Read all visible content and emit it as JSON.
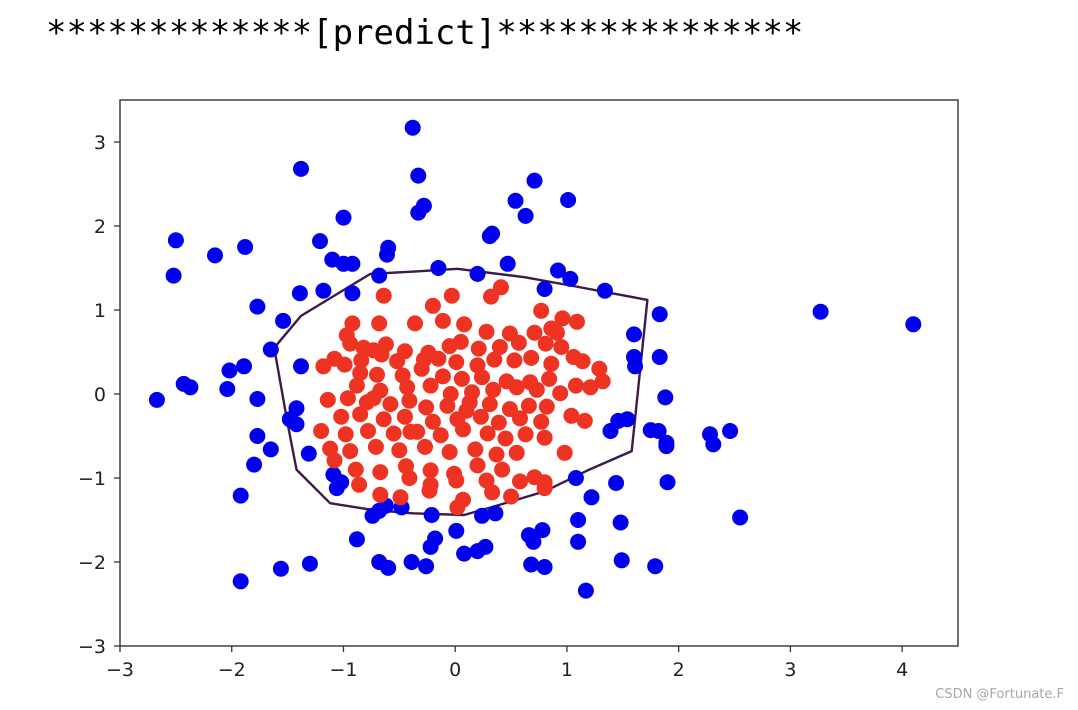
{
  "header": {
    "text": "*************[predict]***************"
  },
  "watermark": "CSDN @Fortunate.F",
  "chart_data": {
    "type": "scatter",
    "title": "",
    "xlabel": "",
    "ylabel": "",
    "xlim": [
      -3,
      4.5
    ],
    "ylim": [
      -3,
      3.5
    ],
    "xticks": [
      -3,
      -2,
      -1,
      0,
      1,
      2,
      3,
      4
    ],
    "xtick_labels": [
      "−3",
      "−2",
      "−1",
      "0",
      "1",
      "2",
      "3",
      "4"
    ],
    "yticks": [
      -3,
      -2,
      -1,
      0,
      1,
      2,
      3
    ],
    "ytick_labels": [
      "−3",
      "−2",
      "−1",
      "0",
      "1",
      "2",
      "3"
    ],
    "grid": false,
    "legend": "none",
    "colors": {
      "class_0": "#0000ee",
      "class_1": "#ee3322",
      "boundary": "#3d1a4a",
      "axes": "#333333"
    },
    "series": [
      {
        "color": "#0000ee",
        "points": [
          [
            -0.38,
            3.17
          ],
          [
            -1.38,
            2.68
          ],
          [
            -0.33,
            2.6
          ],
          [
            0.71,
            2.54
          ],
          [
            1.01,
            2.31
          ],
          [
            0.54,
            2.3
          ],
          [
            0.63,
            2.12
          ],
          [
            -0.28,
            2.24
          ],
          [
            -0.33,
            2.16
          ],
          [
            -1.0,
            2.1
          ],
          [
            0.33,
            1.91
          ],
          [
            0.31,
            1.88
          ],
          [
            -2.5,
            1.83
          ],
          [
            -1.21,
            1.82
          ],
          [
            -1.88,
            1.75
          ],
          [
            -0.6,
            1.74
          ],
          [
            -0.61,
            1.66
          ],
          [
            -2.15,
            1.65
          ],
          [
            -1.1,
            1.6
          ],
          [
            -1.0,
            1.55
          ],
          [
            -0.92,
            1.55
          ],
          [
            0.47,
            1.55
          ],
          [
            0.92,
            1.47
          ],
          [
            -0.15,
            1.5
          ],
          [
            -2.52,
            1.41
          ],
          [
            -0.68,
            1.41
          ],
          [
            1.03,
            1.37
          ],
          [
            0.2,
            1.43
          ],
          [
            0.8,
            1.25
          ],
          [
            1.34,
            1.23
          ],
          [
            -1.18,
            1.23
          ],
          [
            -1.39,
            1.2
          ],
          [
            -0.92,
            1.2
          ],
          [
            -1.77,
            1.04
          ],
          [
            1.83,
            0.95
          ],
          [
            -1.54,
            0.87
          ],
          [
            1.6,
            0.71
          ],
          [
            -1.65,
            0.53
          ],
          [
            1.6,
            0.44
          ],
          [
            1.83,
            0.44
          ],
          [
            1.61,
            0.33
          ],
          [
            -1.38,
            0.33
          ],
          [
            -2.02,
            0.28
          ],
          [
            -1.89,
            0.33
          ],
          [
            -2.43,
            0.12
          ],
          [
            -2.37,
            0.08
          ],
          [
            -2.04,
            0.06
          ],
          [
            -2.67,
            -0.07
          ],
          [
            -1.77,
            -0.06
          ],
          [
            1.88,
            -0.04
          ],
          [
            -1.42,
            -0.17
          ],
          [
            -1.48,
            -0.3
          ],
          [
            1.54,
            -0.3
          ],
          [
            1.46,
            -0.32
          ],
          [
            -1.42,
            -0.36
          ],
          [
            1.39,
            -0.44
          ],
          [
            1.75,
            -0.43
          ],
          [
            1.82,
            -0.44
          ],
          [
            -1.77,
            -0.5
          ],
          [
            1.89,
            -0.58
          ],
          [
            1.89,
            -0.62
          ],
          [
            2.28,
            -0.48
          ],
          [
            2.31,
            -0.6
          ],
          [
            2.46,
            -0.44
          ],
          [
            -1.65,
            -0.66
          ],
          [
            -1.31,
            -0.71
          ],
          [
            -1.8,
            -0.84
          ],
          [
            -1.09,
            -0.96
          ],
          [
            -1.02,
            -1.05
          ],
          [
            1.08,
            -1.0
          ],
          [
            1.9,
            -1.05
          ],
          [
            -1.06,
            -1.12
          ],
          [
            -1.92,
            -1.21
          ],
          [
            1.44,
            -1.06
          ],
          [
            1.22,
            -1.23
          ],
          [
            -0.62,
            -1.33
          ],
          [
            -0.68,
            -1.39
          ],
          [
            -0.74,
            -1.45
          ],
          [
            -0.48,
            -1.35
          ],
          [
            -0.21,
            -1.44
          ],
          [
            0.24,
            -1.45
          ],
          [
            0.36,
            -1.42
          ],
          [
            1.1,
            -1.5
          ],
          [
            1.48,
            -1.53
          ],
          [
            2.55,
            -1.47
          ],
          [
            0.01,
            -1.63
          ],
          [
            0.66,
            -1.68
          ],
          [
            0.78,
            -1.62
          ],
          [
            -0.88,
            -1.73
          ],
          [
            -0.22,
            -1.82
          ],
          [
            -0.18,
            -1.72
          ],
          [
            0.7,
            -1.76
          ],
          [
            1.1,
            -1.76
          ],
          [
            0.08,
            -1.9
          ],
          [
            0.2,
            -1.87
          ],
          [
            0.27,
            -1.82
          ],
          [
            -0.68,
            -2.0
          ],
          [
            -0.39,
            -2.0
          ],
          [
            -0.6,
            -2.07
          ],
          [
            -0.26,
            -2.05
          ],
          [
            0.68,
            -2.03
          ],
          [
            0.8,
            -2.06
          ],
          [
            1.49,
            -1.98
          ],
          [
            1.79,
            -2.05
          ],
          [
            -1.3,
            -2.02
          ],
          [
            -1.56,
            -2.08
          ],
          [
            -1.92,
            -2.23
          ],
          [
            1.17,
            -2.34
          ],
          [
            3.27,
            0.98
          ],
          [
            4.1,
            0.83
          ]
        ]
      },
      {
        "color": "#ee3322",
        "points": [
          [
            -0.64,
            1.17
          ],
          [
            -0.2,
            1.05
          ],
          [
            -0.03,
            1.17
          ],
          [
            0.32,
            1.16
          ],
          [
            0.41,
            1.27
          ],
          [
            0.77,
            0.99
          ],
          [
            0.96,
            0.9
          ],
          [
            1.09,
            0.86
          ],
          [
            -0.92,
            0.84
          ],
          [
            -0.68,
            0.84
          ],
          [
            -0.36,
            0.84
          ],
          [
            -0.11,
            0.87
          ],
          [
            0.08,
            0.83
          ],
          [
            0.28,
            0.74
          ],
          [
            0.49,
            0.72
          ],
          [
            0.71,
            0.73
          ],
          [
            0.86,
            0.78
          ],
          [
            0.91,
            0.73
          ],
          [
            -0.97,
            0.7
          ],
          [
            -0.94,
            0.6
          ],
          [
            -0.82,
            0.55
          ],
          [
            -0.73,
            0.52
          ],
          [
            -0.62,
            0.59
          ],
          [
            -0.45,
            0.51
          ],
          [
            -0.24,
            0.49
          ],
          [
            -0.05,
            0.57
          ],
          [
            0.05,
            0.62
          ],
          [
            0.21,
            0.54
          ],
          [
            0.4,
            0.56
          ],
          [
            0.57,
            0.61
          ],
          [
            0.81,
            0.6
          ],
          [
            0.95,
            0.56
          ],
          [
            1.06,
            0.44
          ],
          [
            1.14,
            0.39
          ],
          [
            -1.08,
            0.42
          ],
          [
            -0.99,
            0.35
          ],
          [
            -0.84,
            0.4
          ],
          [
            -0.66,
            0.47
          ],
          [
            -0.52,
            0.39
          ],
          [
            -0.28,
            0.41
          ],
          [
            -0.15,
            0.42
          ],
          [
            0.01,
            0.38
          ],
          [
            0.2,
            0.34
          ],
          [
            0.35,
            0.41
          ],
          [
            0.53,
            0.4
          ],
          [
            0.68,
            0.43
          ],
          [
            0.86,
            0.36
          ],
          [
            1.29,
            0.3
          ],
          [
            1.32,
            0.15
          ],
          [
            -1.18,
            0.33
          ],
          [
            -0.85,
            0.25
          ],
          [
            -0.7,
            0.23
          ],
          [
            -0.47,
            0.22
          ],
          [
            -0.3,
            0.3
          ],
          [
            -0.11,
            0.21
          ],
          [
            0.06,
            0.18
          ],
          [
            0.24,
            0.2
          ],
          [
            0.46,
            0.15
          ],
          [
            0.67,
            0.14
          ],
          [
            0.84,
            0.18
          ],
          [
            1.08,
            0.1
          ],
          [
            1.21,
            0.08
          ],
          [
            -0.88,
            0.1
          ],
          [
            -0.67,
            0.04
          ],
          [
            -0.43,
            0.08
          ],
          [
            -0.22,
            0.1
          ],
          [
            -0.04,
            0.0
          ],
          [
            0.15,
            0.02
          ],
          [
            0.34,
            0.05
          ],
          [
            0.55,
            0.08
          ],
          [
            0.73,
            0.05
          ],
          [
            0.94,
            0.01
          ],
          [
            -1.14,
            -0.07
          ],
          [
            -0.96,
            -0.05
          ],
          [
            -0.79,
            -0.1
          ],
          [
            -0.58,
            -0.12
          ],
          [
            -0.41,
            -0.08
          ],
          [
            -0.26,
            -0.16
          ],
          [
            -0.07,
            -0.14
          ],
          [
            0.13,
            -0.1
          ],
          [
            0.31,
            -0.12
          ],
          [
            0.49,
            -0.18
          ],
          [
            0.66,
            -0.14
          ],
          [
            0.82,
            -0.15
          ],
          [
            1.04,
            -0.26
          ],
          [
            1.16,
            -0.32
          ],
          [
            -1.02,
            -0.27
          ],
          [
            -0.85,
            -0.24
          ],
          [
            -0.64,
            -0.3
          ],
          [
            -0.45,
            -0.27
          ],
          [
            -0.2,
            -0.33
          ],
          [
            0.02,
            -0.3
          ],
          [
            0.23,
            -0.27
          ],
          [
            0.39,
            -0.34
          ],
          [
            0.58,
            -0.29
          ],
          [
            0.77,
            -0.33
          ],
          [
            -1.2,
            -0.44
          ],
          [
            -0.98,
            -0.48
          ],
          [
            -0.78,
            -0.44
          ],
          [
            -0.55,
            -0.47
          ],
          [
            -0.34,
            -0.45
          ],
          [
            -0.13,
            -0.49
          ],
          [
            0.07,
            -0.42
          ],
          [
            0.29,
            -0.47
          ],
          [
            0.45,
            -0.53
          ],
          [
            0.63,
            -0.48
          ],
          [
            0.8,
            -0.52
          ],
          [
            -1.12,
            -0.65
          ],
          [
            -0.94,
            -0.68
          ],
          [
            -0.71,
            -0.63
          ],
          [
            -0.5,
            -0.67
          ],
          [
            -0.27,
            -0.63
          ],
          [
            -0.05,
            -0.69
          ],
          [
            0.18,
            -0.66
          ],
          [
            0.37,
            -0.72
          ],
          [
            0.55,
            -0.7
          ],
          [
            0.98,
            -0.7
          ],
          [
            -1.08,
            -0.79
          ],
          [
            -0.89,
            -0.9
          ],
          [
            -0.67,
            -0.93
          ],
          [
            -0.44,
            -0.86
          ],
          [
            -0.22,
            -0.91
          ],
          [
            -0.01,
            -0.95
          ],
          [
            0.2,
            -0.85
          ],
          [
            0.42,
            -0.9
          ],
          [
            0.71,
            -0.99
          ],
          [
            0.8,
            -1.05
          ],
          [
            -0.86,
            -1.08
          ],
          [
            -0.41,
            -1.0
          ],
          [
            -0.22,
            -1.08
          ],
          [
            0.01,
            -1.03
          ],
          [
            0.28,
            -1.03
          ],
          [
            0.58,
            -1.04
          ],
          [
            0.8,
            -1.12
          ],
          [
            -0.67,
            -1.2
          ],
          [
            -0.49,
            -1.23
          ],
          [
            -0.23,
            -1.15
          ],
          [
            0.07,
            -1.26
          ],
          [
            0.33,
            -1.17
          ],
          [
            0.5,
            -1.22
          ],
          [
            0.02,
            -1.35
          ],
          [
            -0.73,
            -0.05
          ],
          [
            -0.4,
            -0.45
          ],
          [
            0.1,
            -0.2
          ]
        ]
      }
    ],
    "boundary": [
      [
        -1.62,
        0.55
      ],
      [
        -1.38,
        0.93
      ],
      [
        -0.76,
        1.43
      ],
      [
        -0.35,
        1.46
      ],
      [
        0.02,
        1.49
      ],
      [
        0.62,
        1.39
      ],
      [
        1.08,
        1.28
      ],
      [
        1.72,
        1.12
      ],
      [
        1.58,
        -0.68
      ],
      [
        1.2,
        -0.9
      ],
      [
        0.8,
        -1.16
      ],
      [
        0.32,
        -1.35
      ],
      [
        0.08,
        -1.44
      ],
      [
        -0.38,
        -1.42
      ],
      [
        -0.74,
        -1.38
      ],
      [
        -1.12,
        -1.3
      ],
      [
        -1.42,
        -0.9
      ],
      [
        -1.5,
        -0.35
      ],
      [
        -1.62,
        0.55
      ]
    ]
  }
}
